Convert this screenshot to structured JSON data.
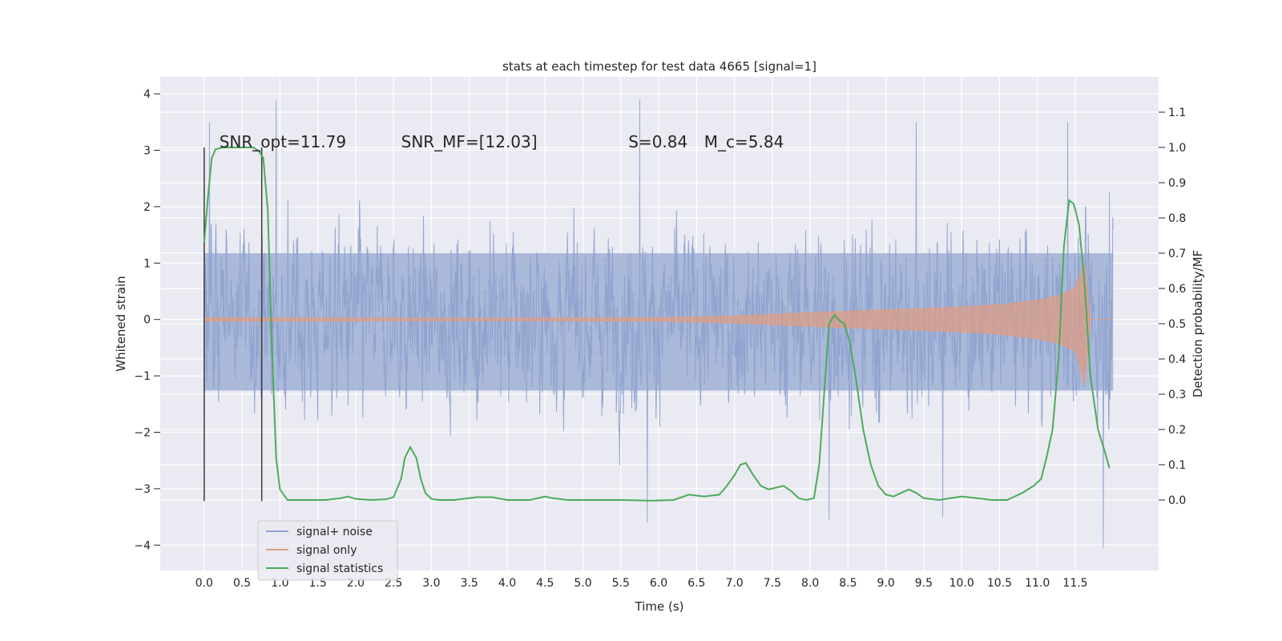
{
  "chart_data": {
    "type": "line",
    "title": "stats at each timestep for test data 4665 [signal=1]",
    "xlabel": "Time (s)",
    "ylabel_left": "Whitened strain",
    "ylabel_right": "Detection probability/MF",
    "xlim": [
      -0.58,
      12.6
    ],
    "ylim_left": [
      -4.45,
      4.3
    ],
    "ylim_right": [
      -0.2,
      1.2
    ],
    "x_ticks": [
      0.0,
      0.5,
      1.0,
      1.5,
      2.0,
      2.5,
      3.0,
      3.5,
      4.0,
      4.5,
      5.0,
      5.5,
      6.0,
      6.5,
      7.0,
      7.5,
      8.0,
      8.5,
      9.0,
      9.5,
      10.0,
      10.5,
      11.0,
      11.5
    ],
    "x_tick_labels": [
      "0.0",
      "0.5",
      "1.0",
      "1.5",
      "2.0",
      "2.5",
      "3.0",
      "3.5",
      "4.0",
      "4.5",
      "5.0",
      "5.5",
      "6.0",
      "6.5",
      "7.0",
      "7.5",
      "8.0",
      "8.5",
      "9.0",
      "9.5",
      "10.0",
      "10.5",
      "11.0",
      "11.5"
    ],
    "y_left_ticks": [
      -4,
      -3,
      -2,
      -1,
      0,
      1,
      2,
      3,
      4
    ],
    "y_left_tick_labels": [
      "−4",
      "−3",
      "−2",
      "−1",
      "0",
      "1",
      "2",
      "3",
      "4"
    ],
    "y_right_ticks": [
      0.0,
      0.1,
      0.2,
      0.3,
      0.4,
      0.5,
      0.6,
      0.7,
      0.8,
      0.9,
      1.0,
      1.1
    ],
    "y_right_tick_labels": [
      "0.0",
      "0.1",
      "0.2",
      "0.3",
      "0.4",
      "0.5",
      "0.6",
      "0.7",
      "0.8",
      "0.9",
      "1.0",
      "1.1"
    ],
    "grid": true,
    "legend_placement": "lower-left",
    "annotations": [
      {
        "label": "SNR_opt=11.79",
        "x": 0.2,
        "y": 3.05
      },
      {
        "label": "SNR_MF=[12.03]",
        "x": 2.6,
        "y": 3.05
      },
      {
        "label": "S=0.84",
        "x": 5.6,
        "y": 3.05
      },
      {
        "label": "M_c=5.84",
        "x": 6.6,
        "y": 3.05
      }
    ],
    "vertical_markers": [
      {
        "x": 0.0,
        "ymin": -3.22,
        "ymax": 3.05
      },
      {
        "x": 0.76,
        "ymin": -3.22,
        "ymax": 3.05
      }
    ],
    "series": [
      {
        "name": "signal+ noise",
        "axis": "left",
        "color": "#8fa3cf",
        "x_range": [
          0.0,
          12.0
        ],
        "typical_envelope": [
          -1.4,
          1.9
        ],
        "min": -4.05,
        "max": 3.9,
        "peaks": [
          {
            "x": 0.07,
            "y": 3.5
          },
          {
            "x": 0.95,
            "y": 3.88
          },
          {
            "x": 5.75,
            "y": 3.9
          },
          {
            "x": 9.4,
            "y": 3.5
          },
          {
            "x": 11.4,
            "y": 3.5
          },
          {
            "x": 11.95,
            "y": 2.25
          }
        ],
        "troughs": [
          {
            "x": 0.0,
            "y": -2.75
          },
          {
            "x": 5.85,
            "y": -3.6
          },
          {
            "x": 8.25,
            "y": -3.55
          },
          {
            "x": 9.75,
            "y": -3.5
          },
          {
            "x": 11.87,
            "y": -4.05
          }
        ]
      },
      {
        "name": "signal only",
        "axis": "left",
        "color": "#dd9e84",
        "envelope": {
          "x": [
            0.0,
            4.0,
            6.0,
            7.0,
            8.0,
            9.0,
            10.0,
            10.5,
            11.0,
            11.3,
            11.5,
            11.62,
            11.7,
            12.0
          ],
          "upper": [
            0.03,
            0.02,
            0.03,
            0.06,
            0.12,
            0.17,
            0.22,
            0.26,
            0.34,
            0.43,
            0.56,
            1.0,
            0.0,
            0.0
          ],
          "lower": [
            -0.03,
            -0.02,
            -0.03,
            -0.06,
            -0.12,
            -0.17,
            -0.22,
            -0.26,
            -0.34,
            -0.43,
            -0.56,
            -1.15,
            0.0,
            0.0
          ]
        }
      },
      {
        "name": "signal statistics",
        "axis": "right",
        "color": "#4eaa5b",
        "x": [
          0.0,
          0.05,
          0.1,
          0.15,
          0.25,
          0.4,
          0.55,
          0.65,
          0.72,
          0.78,
          0.84,
          0.9,
          0.95,
          1.0,
          1.1,
          1.3,
          1.6,
          1.8,
          1.9,
          2.0,
          2.2,
          2.4,
          2.5,
          2.6,
          2.65,
          2.72,
          2.8,
          2.86,
          2.92,
          3.0,
          3.1,
          3.3,
          3.6,
          3.8,
          4.0,
          4.3,
          4.5,
          4.6,
          4.8,
          5.0,
          5.5,
          5.9,
          6.2,
          6.4,
          6.6,
          6.8,
          6.9,
          7.0,
          7.08,
          7.15,
          7.25,
          7.35,
          7.45,
          7.55,
          7.65,
          7.75,
          7.85,
          7.95,
          8.05,
          8.12,
          8.2,
          8.25,
          8.32,
          8.38,
          8.45,
          8.52,
          8.6,
          8.7,
          8.8,
          8.9,
          9.0,
          9.1,
          9.2,
          9.3,
          9.4,
          9.5,
          9.7,
          10.0,
          10.2,
          10.4,
          10.6,
          10.8,
          10.95,
          11.05,
          11.12,
          11.2,
          11.28,
          11.35,
          11.42,
          11.48,
          11.55,
          11.62,
          11.7,
          11.8,
          11.9,
          11.95
        ],
        "values": [
          0.73,
          0.86,
          0.97,
          0.995,
          1.0,
          1.0,
          1.0,
          1.0,
          0.99,
          0.97,
          0.82,
          0.4,
          0.12,
          0.03,
          0.0,
          0.0,
          0.0,
          0.005,
          0.01,
          0.003,
          0.0,
          0.002,
          0.008,
          0.06,
          0.12,
          0.15,
          0.12,
          0.06,
          0.02,
          0.003,
          0.0,
          0.0,
          0.008,
          0.008,
          0.0,
          0.0,
          0.01,
          0.005,
          0.0,
          0.0,
          0.0,
          -0.002,
          0.0,
          0.015,
          0.01,
          0.015,
          0.04,
          0.07,
          0.1,
          0.105,
          0.07,
          0.04,
          0.03,
          0.035,
          0.04,
          0.025,
          0.005,
          0.0,
          0.005,
          0.1,
          0.35,
          0.5,
          0.525,
          0.51,
          0.5,
          0.45,
          0.35,
          0.2,
          0.1,
          0.04,
          0.015,
          0.01,
          0.02,
          0.03,
          0.02,
          0.005,
          0.0,
          0.01,
          0.005,
          0.0,
          0.0,
          0.02,
          0.04,
          0.06,
          0.12,
          0.2,
          0.4,
          0.72,
          0.85,
          0.84,
          0.78,
          0.62,
          0.35,
          0.2,
          0.13,
          0.09
        ]
      }
    ]
  }
}
